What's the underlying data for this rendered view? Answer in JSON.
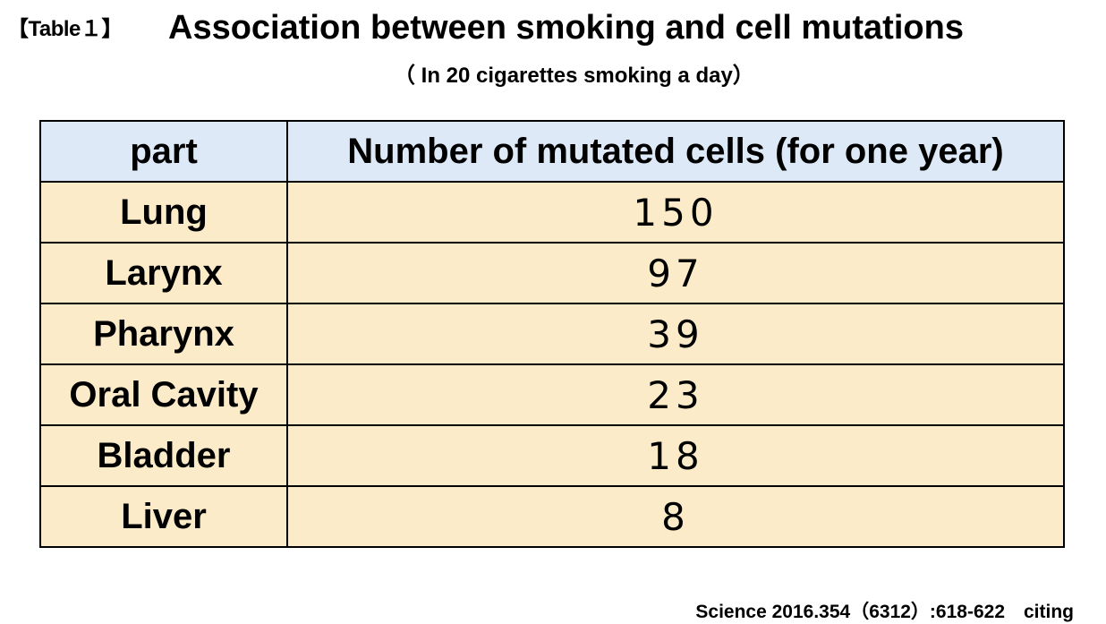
{
  "header": {
    "table_label": "【Table１】",
    "title": "Association between smoking and cell mutations",
    "subtitle": "（ In 20 cigarettes smoking a day）"
  },
  "table": {
    "columns": [
      "part",
      "Number of mutated cells (for one year)"
    ],
    "rows": [
      {
        "part": "Lung",
        "value": "150"
      },
      {
        "part": "Larynx",
        "value": "97"
      },
      {
        "part": "Pharynx",
        "value": "39"
      },
      {
        "part": "Oral Cavity",
        "value": "23"
      },
      {
        "part": "Bladder",
        "value": "18"
      },
      {
        "part": "Liver",
        "value": "8"
      }
    ]
  },
  "footer": {
    "source": "Science 2016.354（6312）:618-622　citing"
  },
  "colors": {
    "header_bg": "#dde9f6",
    "row_bg": "#fcebc9",
    "border": "#000000"
  }
}
